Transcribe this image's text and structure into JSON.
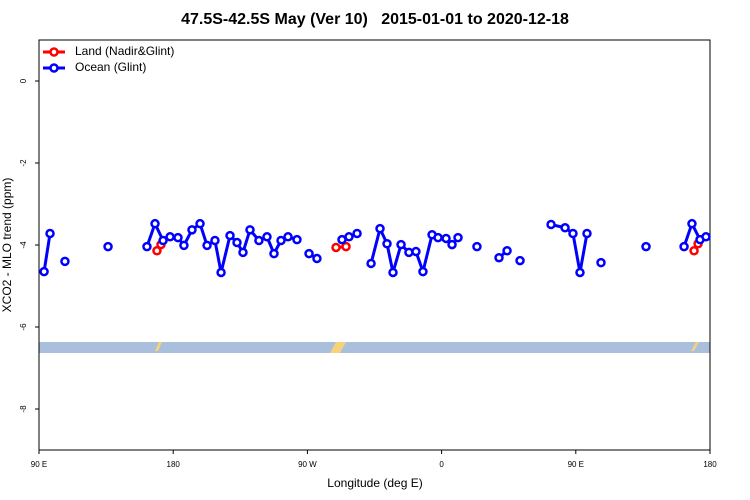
{
  "chart_data": {
    "type": "line",
    "title": "47.5S-42.5S May (Ver 10)   2015-01-01 to 2020-12-18",
    "x_label": "Longitude (deg E)",
    "y_label": "XCO2 - MLO trend (ppm)",
    "xlim": [
      90,
      540
    ],
    "ylim": [
      -9,
      1
    ],
    "xticks": [
      {
        "value": 90,
        "label": "90 E"
      },
      180,
      {
        "value": 270,
        "label": "90 W"
      },
      {
        "value": 360,
        "label": "0"
      },
      {
        "value": 450,
        "label": "90 E"
      },
      {
        "value": 540,
        "label": "180"
      }
    ],
    "yticks": [
      0,
      -2,
      -4,
      -6,
      -8
    ],
    "legend": "top-left",
    "series": [
      {
        "name": "Land (Nadir&Glint)",
        "color": "#ff0000",
        "x": [
          169.1,
          171.8,
          null,
          289.2,
          295.9,
          null,
          529.3,
          532.0
        ],
        "values": [
          -4.14,
          -3.99,
          null,
          -4.06,
          -4.04,
          null,
          -4.14,
          -3.97
        ]
      },
      {
        "name": "Ocean (Glint)",
        "color": "#0000ff",
        "x": [
          93.4,
          97.4,
          null,
          107.4,
          null,
          136.3,
          null,
          162.4,
          167.8,
          173.2,
          177.9,
          183.2,
          187.2,
          192.6,
          198.0,
          202.7,
          208.0,
          212.1,
          218.1,
          222.8,
          226.8,
          231.5,
          237.5,
          242.9,
          247.6,
          252.3,
          257.0,
          263.0,
          null,
          271.1,
          276.4,
          null,
          293.2,
          297.9,
          303.3,
          null,
          312.7,
          318.7,
          323.4,
          327.4,
          332.8,
          338.1,
          342.8,
          347.5,
          353.6,
          357.6,
          363.0,
          367.0,
          371.0,
          null,
          383.7,
          null,
          398.5,
          403.9,
          null,
          412.6,
          null,
          433.4,
          442.8,
          448.1,
          452.8,
          457.5,
          null,
          466.9,
          null,
          497.1,
          null,
          522.6,
          527.9,
          533.3,
          537.3
        ],
        "values": [
          -4.65,
          -3.72,
          null,
          -4.4,
          null,
          -4.04,
          null,
          -4.04,
          -3.48,
          -3.89,
          -3.8,
          -3.82,
          -4.01,
          -3.63,
          -3.48,
          -4.01,
          -3.89,
          -4.67,
          -3.77,
          -3.94,
          -4.18,
          -3.63,
          -3.89,
          -3.8,
          -4.21,
          -3.89,
          -3.8,
          -3.87,
          null,
          -4.21,
          -4.33,
          null,
          -3.87,
          -3.8,
          -3.72,
          null,
          -4.45,
          -3.6,
          -3.97,
          -4.67,
          -3.99,
          -4.18,
          -4.16,
          -4.65,
          -3.75,
          -3.82,
          -3.84,
          -3.99,
          -3.82,
          null,
          -4.04,
          null,
          -4.31,
          -4.14,
          null,
          -4.38,
          null,
          -3.5,
          -3.58,
          -3.72,
          -4.67,
          -3.72,
          null,
          -4.43,
          null,
          -4.04,
          null,
          -4.04,
          -3.48,
          -3.87,
          -3.8
        ]
      }
    ]
  }
}
